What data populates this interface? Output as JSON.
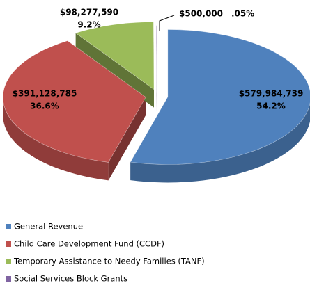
{
  "chart_data": {
    "type": "pie",
    "categories": [
      "General  Revenue",
      "Child Care Development Fund (CCDF)",
      "Temporary Assistance to Needy Families (TANF)",
      "Social Services Block Grants"
    ],
    "values": [
      579984739,
      391128785,
      98277590,
      500000
    ],
    "value_labels": [
      "$579,984,739",
      "$391,128,785",
      "$98,277,590",
      "$500,000"
    ],
    "percents": [
      54.2,
      36.6,
      9.2,
      0.05
    ],
    "percent_labels": [
      "54.2%",
      "36.6%",
      "9.2%",
      ".05%"
    ],
    "colors": [
      "#4f81bd",
      "#c0504d",
      "#9bbb59",
      "#8064a2"
    ],
    "legend": "bottom-left"
  }
}
